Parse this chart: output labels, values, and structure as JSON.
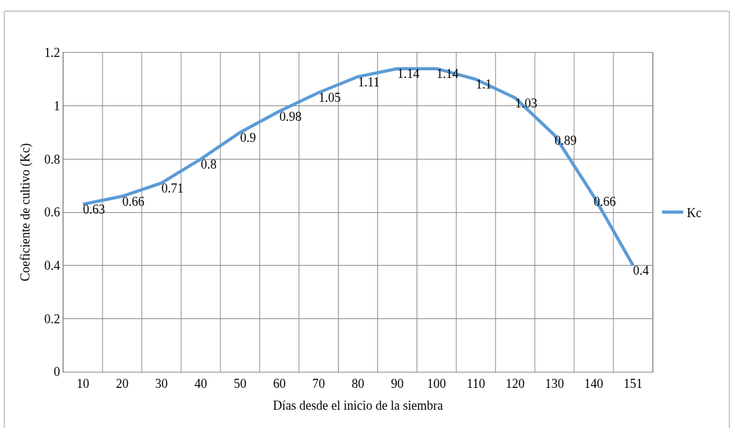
{
  "chart_data": {
    "type": "line",
    "xlabel": "Días desde el inicio de la siembra",
    "ylabel": "Coeficiente de cultivo (Kc)",
    "categories": [
      "10",
      "20",
      "30",
      "40",
      "50",
      "60",
      "70",
      "80",
      "90",
      "100",
      "110",
      "120",
      "130",
      "140",
      "151"
    ],
    "series": [
      {
        "name": "Kc",
        "color": "#5b9bd5",
        "values": [
          0.63,
          0.66,
          0.71,
          0.8,
          0.9,
          0.98,
          1.05,
          1.11,
          1.14,
          1.14,
          1.1,
          1.03,
          0.89,
          0.66,
          0.4
        ]
      }
    ],
    "ylim": [
      0,
      1.2
    ],
    "yticks": [
      0,
      0.2,
      0.4,
      0.6,
      0.8,
      1,
      1.2
    ],
    "grid": true,
    "legend": "right",
    "data_labels": true,
    "marker": "none",
    "line_style": "solid"
  }
}
